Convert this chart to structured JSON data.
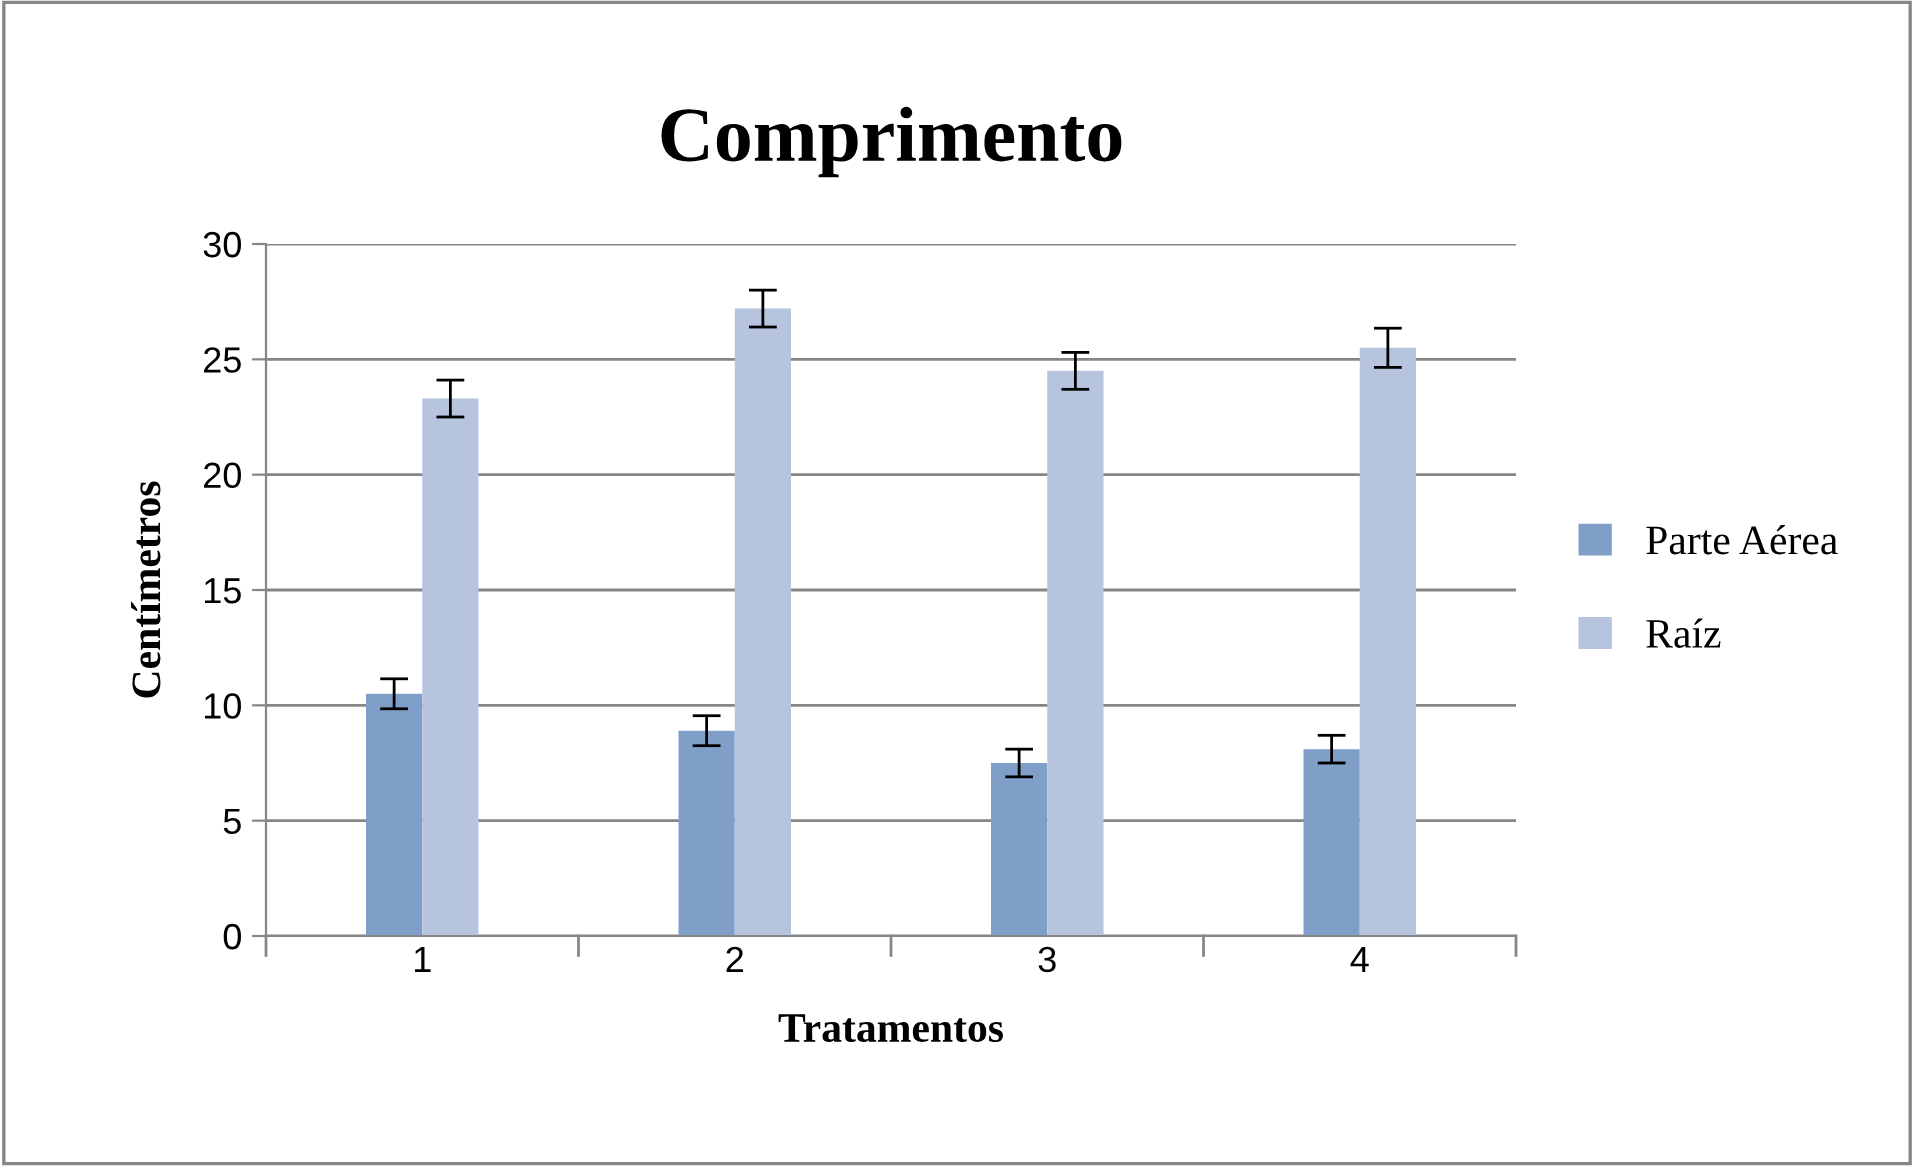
{
  "chart_data": {
    "type": "bar",
    "title": "Comprimento",
    "xlabel": "Tratamentos",
    "ylabel": "Centímetros",
    "categories": [
      "1",
      "2",
      "3",
      "4"
    ],
    "series": [
      {
        "name": "Parte Aérea",
        "color": "#7f9ec8",
        "values": [
          10.5,
          8.9,
          7.5,
          8.1
        ],
        "errors": [
          0.65,
          0.65,
          0.6,
          0.6
        ]
      },
      {
        "name": "Raíz",
        "color": "#b6c4de",
        "values": [
          23.3,
          27.2,
          24.5,
          25.5
        ],
        "errors": [
          0.8,
          0.8,
          0.8,
          0.85
        ]
      }
    ],
    "ylim": [
      0,
      30
    ],
    "yticks": [
      0,
      5,
      10,
      15,
      20,
      25,
      30
    ],
    "grid": "y",
    "legend": "right"
  }
}
